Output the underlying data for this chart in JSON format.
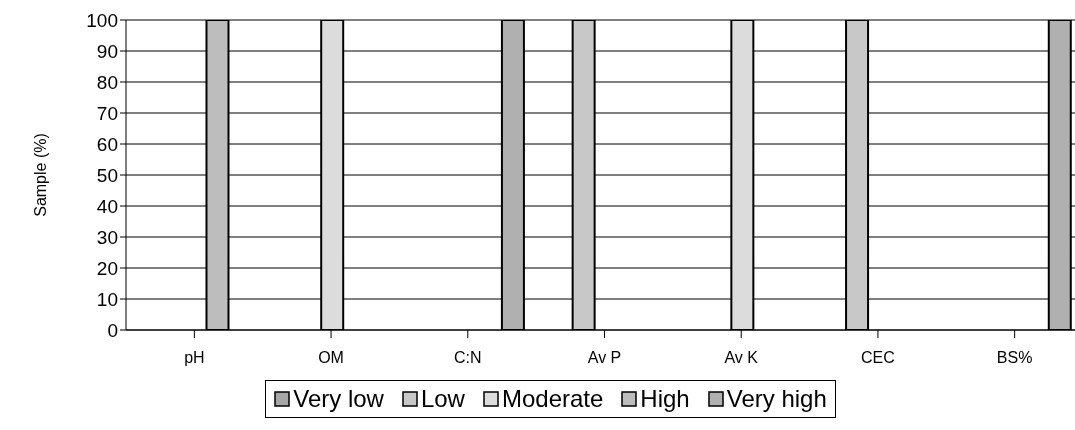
{
  "chart_data": {
    "type": "bar",
    "ylabel": "Sample (%)",
    "categories": [
      "pH",
      "OM",
      "C:N",
      "Av P",
      "Av K",
      "CEC",
      "BS%"
    ],
    "series": [
      {
        "name": "Very low",
        "color": "#a6a6a6",
        "values": [
          0,
          0,
          0,
          0,
          0,
          0,
          0
        ]
      },
      {
        "name": "Low",
        "color": "#c8c8c8",
        "values": [
          0,
          0,
          0,
          100,
          0,
          100,
          0
        ]
      },
      {
        "name": "Moderate",
        "color": "#dcdcdc",
        "values": [
          0,
          100,
          0,
          0,
          100,
          0,
          0
        ]
      },
      {
        "name": "High",
        "color": "#bdbdbd",
        "values": [
          100,
          0,
          0,
          0,
          0,
          0,
          0
        ]
      },
      {
        "name": "Very high",
        "color": "#b0b0b0",
        "values": [
          0,
          0,
          100,
          0,
          0,
          0,
          100
        ]
      }
    ],
    "ylim": [
      0,
      100
    ],
    "yticks": [
      0,
      10,
      20,
      30,
      40,
      50,
      60,
      70,
      80,
      90,
      100
    ],
    "grid": "y",
    "legend": "bottom"
  }
}
